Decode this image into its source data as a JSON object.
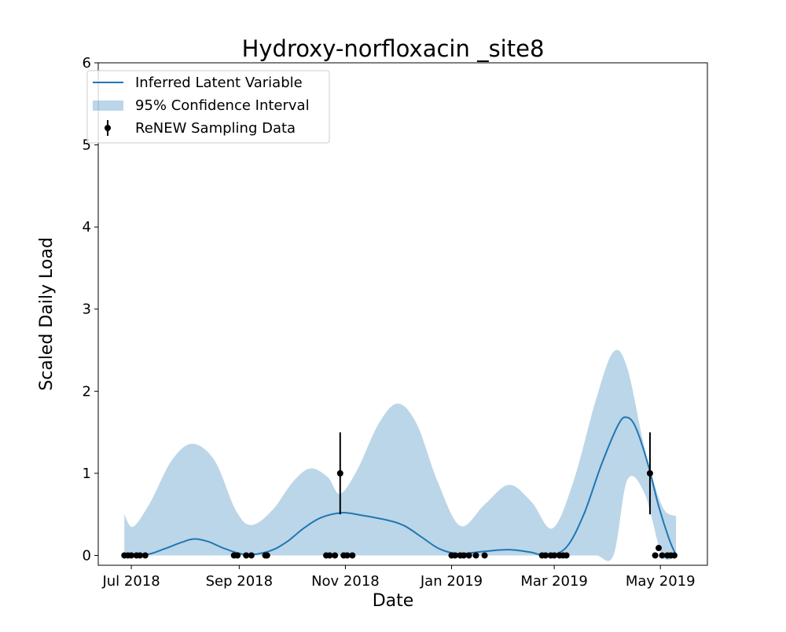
{
  "chart_data": {
    "type": "line",
    "title": "Hydroxy-norfloxacin _site8",
    "xlabel": "Date",
    "ylabel": "Scaled Daily Load",
    "xlim": [
      "2018-06-12",
      "2019-05-28"
    ],
    "ylim": [
      -0.12,
      6
    ],
    "grid": false,
    "legend_position": "top-left",
    "x_ticks": [
      {
        "date": "2018-07-01",
        "label": "Jul 2018"
      },
      {
        "date": "2018-09-01",
        "label": "Sep 2018"
      },
      {
        "date": "2018-11-01",
        "label": "Nov 2018"
      },
      {
        "date": "2019-01-01",
        "label": "Jan 2019"
      },
      {
        "date": "2019-03-01",
        "label": "Mar 2019"
      },
      {
        "date": "2019-05-01",
        "label": "May 2019"
      }
    ],
    "y_ticks": [
      {
        "value": 0,
        "label": "0"
      },
      {
        "value": 1,
        "label": "1"
      },
      {
        "value": 2,
        "label": "2"
      },
      {
        "value": 3,
        "label": "3"
      },
      {
        "value": 4,
        "label": "4"
      },
      {
        "value": 5,
        "label": "5"
      },
      {
        "value": 6,
        "label": "6"
      }
    ],
    "series": [
      {
        "name": "Inferred Latent Variable",
        "kind": "line",
        "color": "#1f77b4",
        "points": [
          {
            "x": "2018-06-27",
            "y": 0.0
          },
          {
            "x": "2018-07-10",
            "y": 0.01
          },
          {
            "x": "2018-07-20",
            "y": 0.08
          },
          {
            "x": "2018-07-30",
            "y": 0.16
          },
          {
            "x": "2018-08-06",
            "y": 0.2
          },
          {
            "x": "2018-08-14",
            "y": 0.17
          },
          {
            "x": "2018-08-24",
            "y": 0.08
          },
          {
            "x": "2018-09-05",
            "y": 0.01
          },
          {
            "x": "2018-09-18",
            "y": 0.05
          },
          {
            "x": "2018-09-28",
            "y": 0.16
          },
          {
            "x": "2018-10-08",
            "y": 0.33
          },
          {
            "x": "2018-10-18",
            "y": 0.46
          },
          {
            "x": "2018-10-30",
            "y": 0.52
          },
          {
            "x": "2018-11-10",
            "y": 0.49
          },
          {
            "x": "2018-11-25",
            "y": 0.43
          },
          {
            "x": "2018-12-05",
            "y": 0.36
          },
          {
            "x": "2018-12-15",
            "y": 0.22
          },
          {
            "x": "2018-12-25",
            "y": 0.08
          },
          {
            "x": "2019-01-05",
            "y": 0.02
          },
          {
            "x": "2019-01-20",
            "y": 0.05
          },
          {
            "x": "2019-02-03",
            "y": 0.07
          },
          {
            "x": "2019-02-15",
            "y": 0.04
          },
          {
            "x": "2019-02-25",
            "y": 0.0
          },
          {
            "x": "2019-03-08",
            "y": 0.1
          },
          {
            "x": "2019-03-18",
            "y": 0.5
          },
          {
            "x": "2019-03-28",
            "y": 1.1
          },
          {
            "x": "2019-04-07",
            "y": 1.6
          },
          {
            "x": "2019-04-12",
            "y": 1.68
          },
          {
            "x": "2019-04-17",
            "y": 1.55
          },
          {
            "x": "2019-04-24",
            "y": 1.1
          },
          {
            "x": "2019-04-30",
            "y": 0.6
          },
          {
            "x": "2019-05-06",
            "y": 0.2
          },
          {
            "x": "2019-05-10",
            "y": 0.0
          }
        ]
      },
      {
        "name": "95% Confidence Interval",
        "kind": "band",
        "color": "#1f77b4",
        "opacity": 0.3,
        "points": [
          {
            "x": "2018-06-27",
            "lower": 0,
            "upper": 0.5
          },
          {
            "x": "2018-07-02",
            "lower": 0,
            "upper": 0.35
          },
          {
            "x": "2018-07-12",
            "lower": 0,
            "upper": 0.65
          },
          {
            "x": "2018-07-24",
            "lower": 0,
            "upper": 1.15
          },
          {
            "x": "2018-08-05",
            "lower": 0,
            "upper": 1.36
          },
          {
            "x": "2018-08-18",
            "lower": 0,
            "upper": 1.15
          },
          {
            "x": "2018-08-30",
            "lower": 0,
            "upper": 0.55
          },
          {
            "x": "2018-09-08",
            "lower": 0,
            "upper": 0.37
          },
          {
            "x": "2018-09-20",
            "lower": 0,
            "upper": 0.55
          },
          {
            "x": "2018-10-02",
            "lower": 0,
            "upper": 0.9
          },
          {
            "x": "2018-10-12",
            "lower": 0,
            "upper": 1.06
          },
          {
            "x": "2018-10-22",
            "lower": 0,
            "upper": 0.95
          },
          {
            "x": "2018-10-29",
            "lower": 0,
            "upper": 0.75
          },
          {
            "x": "2018-11-08",
            "lower": 0,
            "upper": 1.05
          },
          {
            "x": "2018-11-20",
            "lower": 0,
            "upper": 1.6
          },
          {
            "x": "2018-12-01",
            "lower": 0,
            "upper": 1.85
          },
          {
            "x": "2018-12-12",
            "lower": 0,
            "upper": 1.6
          },
          {
            "x": "2018-12-24",
            "lower": 0,
            "upper": 0.9
          },
          {
            "x": "2019-01-06",
            "lower": 0,
            "upper": 0.36
          },
          {
            "x": "2019-01-20",
            "lower": 0,
            "upper": 0.62
          },
          {
            "x": "2019-02-03",
            "lower": 0,
            "upper": 0.86
          },
          {
            "x": "2019-02-16",
            "lower": 0,
            "upper": 0.65
          },
          {
            "x": "2019-02-28",
            "lower": 0,
            "upper": 0.33
          },
          {
            "x": "2019-03-12",
            "lower": 0,
            "upper": 0.9
          },
          {
            "x": "2019-03-25",
            "lower": 0,
            "upper": 1.9
          },
          {
            "x": "2019-04-04",
            "lower": 0,
            "upper": 2.48
          },
          {
            "x": "2019-04-12",
            "lower": 0.92,
            "upper": 2.28
          },
          {
            "x": "2019-04-22",
            "lower": 0.75,
            "upper": 1.3
          },
          {
            "x": "2019-05-02",
            "lower": 0,
            "upper": 0.6
          },
          {
            "x": "2019-05-10",
            "lower": 0,
            "upper": 0.48
          }
        ]
      },
      {
        "name": "ReNEW Sampling Data",
        "kind": "errorbar",
        "color": "#000000",
        "points": [
          {
            "x": "2018-06-27",
            "y": 0
          },
          {
            "x": "2018-06-29",
            "y": 0
          },
          {
            "x": "2018-07-01",
            "y": 0
          },
          {
            "x": "2018-07-04",
            "y": 0
          },
          {
            "x": "2018-07-06",
            "y": 0
          },
          {
            "x": "2018-07-09",
            "y": 0
          },
          {
            "x": "2018-08-29",
            "y": 0
          },
          {
            "x": "2018-08-31",
            "y": 0
          },
          {
            "x": "2018-09-05",
            "y": 0
          },
          {
            "x": "2018-09-08",
            "y": 0
          },
          {
            "x": "2018-09-16",
            "y": 0
          },
          {
            "x": "2018-09-17",
            "y": 0
          },
          {
            "x": "2018-10-21",
            "y": 0
          },
          {
            "x": "2018-10-23",
            "y": 0
          },
          {
            "x": "2018-10-26",
            "y": 0
          },
          {
            "x": "2018-10-29",
            "y": 1,
            "err": 0.5
          },
          {
            "x": "2018-10-31",
            "y": 0
          },
          {
            "x": "2018-11-02",
            "y": 0
          },
          {
            "x": "2018-11-05",
            "y": 0
          },
          {
            "x": "2019-01-01",
            "y": 0
          },
          {
            "x": "2019-01-03",
            "y": 0
          },
          {
            "x": "2019-01-06",
            "y": 0
          },
          {
            "x": "2019-01-08",
            "y": 0
          },
          {
            "x": "2019-01-11",
            "y": 0
          },
          {
            "x": "2019-01-15",
            "y": 0
          },
          {
            "x": "2019-01-20",
            "y": 0
          },
          {
            "x": "2019-02-22",
            "y": 0
          },
          {
            "x": "2019-02-24",
            "y": 0
          },
          {
            "x": "2019-02-27",
            "y": 0
          },
          {
            "x": "2019-03-01",
            "y": 0
          },
          {
            "x": "2019-03-04",
            "y": 0
          },
          {
            "x": "2019-03-06",
            "y": 0
          },
          {
            "x": "2019-03-08",
            "y": 0
          },
          {
            "x": "2019-04-25",
            "y": 1,
            "err": 0.5
          },
          {
            "x": "2019-04-28",
            "y": 0
          },
          {
            "x": "2019-04-30",
            "y": 0.09
          },
          {
            "x": "2019-05-02",
            "y": 0
          },
          {
            "x": "2019-05-05",
            "y": 0
          },
          {
            "x": "2019-05-07",
            "y": 0
          },
          {
            "x": "2019-05-09",
            "y": 0
          }
        ]
      }
    ]
  }
}
